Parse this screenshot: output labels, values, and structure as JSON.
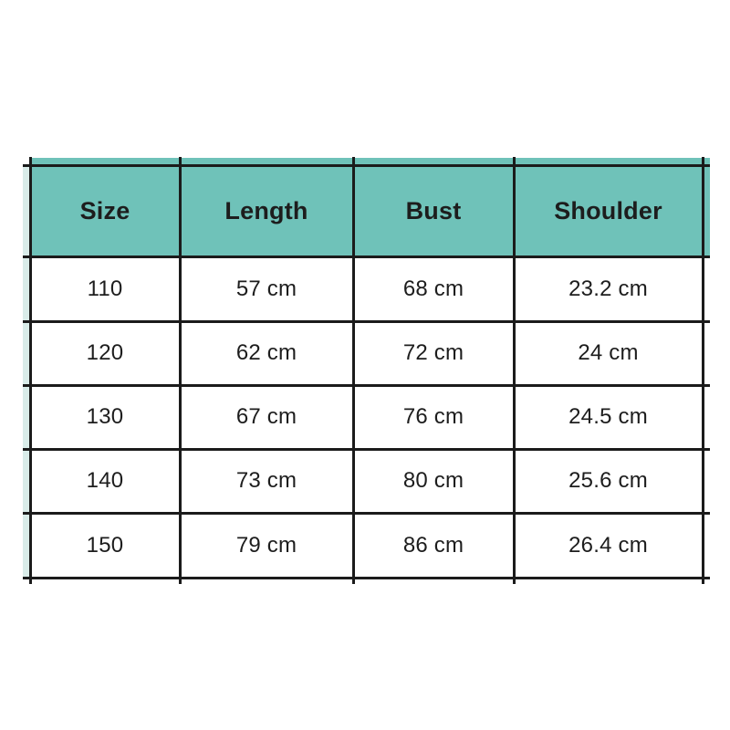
{
  "chart_data": {
    "type": "table",
    "title": "",
    "columns": [
      "Size",
      "Length",
      "Bust",
      "Shoulder"
    ],
    "rows": [
      [
        "110",
        "57 cm",
        "68 cm",
        "23.2 cm"
      ],
      [
        "120",
        "62 cm",
        "72 cm",
        "24 cm"
      ],
      [
        "130",
        "67 cm",
        "76 cm",
        "24.5 cm"
      ],
      [
        "140",
        "73 cm",
        "80 cm",
        "25.6 cm"
      ],
      [
        "150",
        "79 cm",
        "86 cm",
        "26.4 cm"
      ]
    ],
    "unit": "cm"
  },
  "colors": {
    "header_bg": "#6fc2b9",
    "left_strip_bg": "#d9ece9",
    "border": "#1b1b1b",
    "text": "#1d1d1d",
    "page_bg": "#ffffff"
  }
}
